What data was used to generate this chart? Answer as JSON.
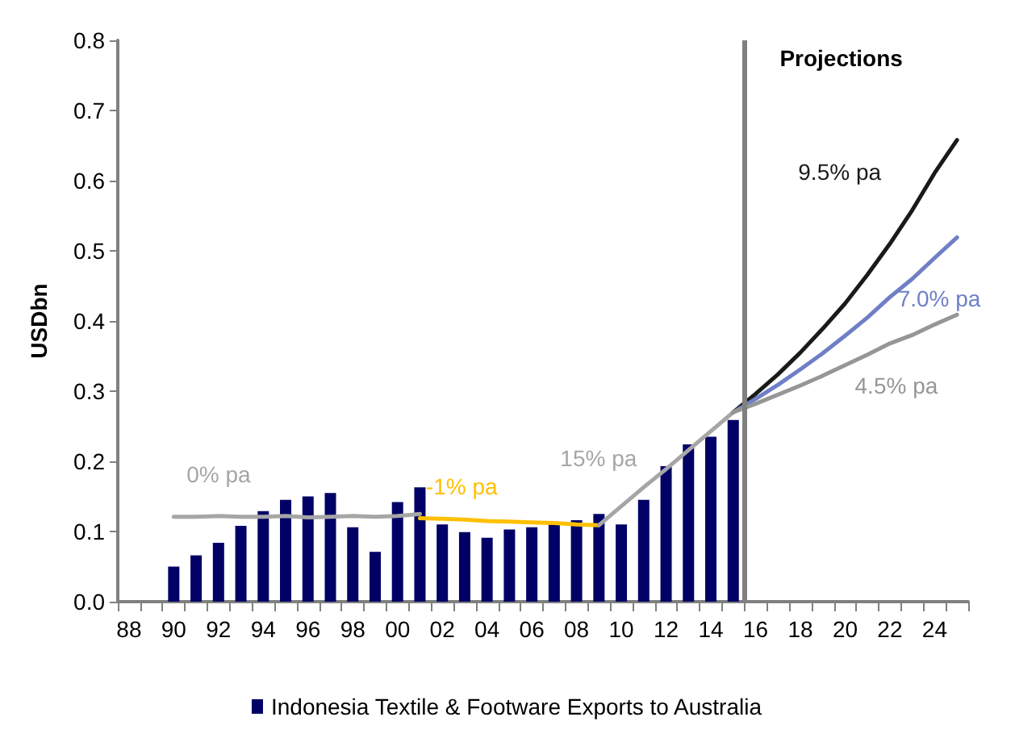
{
  "chart_data": {
    "type": "bar",
    "ylabel": "USDbn",
    "xlim": [
      1987.5,
      2025.5
    ],
    "xticks": [
      {
        "value": 1988,
        "label": "88"
      },
      {
        "value": 1990,
        "label": "90"
      },
      {
        "value": 1992,
        "label": "92"
      },
      {
        "value": 1994,
        "label": "94"
      },
      {
        "value": 1996,
        "label": "96"
      },
      {
        "value": 1998,
        "label": "98"
      },
      {
        "value": 2000,
        "label": "00"
      },
      {
        "value": 2002,
        "label": "02"
      },
      {
        "value": 2004,
        "label": "04"
      },
      {
        "value": 2006,
        "label": "06"
      },
      {
        "value": 2008,
        "label": "08"
      },
      {
        "value": 2010,
        "label": "10"
      },
      {
        "value": 2012,
        "label": "12"
      },
      {
        "value": 2014,
        "label": "14"
      },
      {
        "value": 2016,
        "label": "16"
      },
      {
        "value": 2018,
        "label": "18"
      },
      {
        "value": 2020,
        "label": "20"
      },
      {
        "value": 2022,
        "label": "22"
      },
      {
        "value": 2024,
        "label": "24"
      }
    ],
    "ylim": [
      0,
      0.8
    ],
    "yticks": [
      {
        "value": 0,
        "label": "0.0"
      },
      0.1,
      0.2,
      0.3,
      0.4,
      0.5,
      0.6,
      0.7,
      0.8
    ],
    "grid": false,
    "legend": "bottom",
    "marker": "none",
    "x": [
      1990,
      1991,
      1992,
      1993,
      1994,
      1995,
      1996,
      1997,
      1998,
      1999,
      2000,
      2001,
      2002,
      2003,
      2004,
      2005,
      2006,
      2007,
      2008,
      2009,
      2010,
      2011,
      2012,
      2013,
      2014,
      2015
    ],
    "series": [
      {
        "name": "Indonesia Textile & Footware Exports to Australia",
        "color": "#000066",
        "values": [
          0.05,
          0.066,
          0.084,
          0.108,
          0.129,
          0.145,
          0.15,
          0.155,
          0.106,
          0.071,
          0.142,
          0.163,
          0.11,
          0.099,
          0.091,
          0.103,
          0.106,
          0.111,
          0.116,
          0.125,
          0.11,
          0.145,
          0.193,
          0.224,
          0.235,
          0.259
        ]
      },
      {
        "type": "line",
        "name": "0% pa",
        "color": "#a6a6a6",
        "x": [
          1990,
          1991,
          1992,
          1993,
          1994,
          1995,
          1996,
          1997,
          1998,
          1999,
          2000,
          2001
        ],
        "values": [
          0.121,
          0.121,
          0.122,
          0.121,
          0.121,
          0.122,
          0.12,
          0.121,
          0.122,
          0.121,
          0.122,
          0.125
        ]
      },
      {
        "type": "line",
        "name": "-1% pa",
        "color": "#ffc000",
        "x": [
          2001,
          2002,
          2003,
          2004,
          2005,
          2006,
          2007,
          2008,
          2009
        ],
        "values": [
          0.119,
          0.118,
          0.117,
          0.115,
          0.114,
          0.113,
          0.112,
          0.11,
          0.109
        ]
      },
      {
        "type": "line",
        "name": "15% pa",
        "color": "#a6a6a6",
        "x": [
          2009,
          2010,
          2011,
          2012,
          2013,
          2014,
          2015
        ],
        "values": [
          0.109,
          0.136,
          0.163,
          0.189,
          0.216,
          0.243,
          0.27
        ]
      },
      {
        "type": "line",
        "name": "9.5% pa",
        "color": "#1a1a1a",
        "x": [
          2015,
          2016,
          2017,
          2018,
          2019,
          2020,
          2021,
          2022,
          2023,
          2024,
          2025
        ],
        "values": [
          0.27,
          0.296,
          0.324,
          0.355,
          0.389,
          0.425,
          0.466,
          0.51,
          0.558,
          0.611,
          0.658
        ]
      },
      {
        "type": "line",
        "name": "7.0% pa",
        "color": "#6f7fc6",
        "x": [
          2015,
          2016,
          2017,
          2018,
          2019,
          2020,
          2021,
          2022,
          2023,
          2024,
          2025
        ],
        "values": [
          0.27,
          0.289,
          0.309,
          0.331,
          0.354,
          0.379,
          0.405,
          0.434,
          0.46,
          0.49,
          0.519
        ]
      },
      {
        "type": "line",
        "name": "4.5% pa",
        "color": "#969696",
        "x": [
          2015,
          2016,
          2017,
          2018,
          2019,
          2020,
          2021,
          2022,
          2023,
          2024,
          2025
        ],
        "values": [
          0.27,
          0.282,
          0.295,
          0.308,
          0.322,
          0.337,
          0.352,
          0.368,
          0.38,
          0.395,
          0.409
        ]
      }
    ],
    "ref_lines": [
      {
        "axis": "x",
        "value": 2015.5,
        "label": "Projections",
        "color": "#808080"
      }
    ]
  }
}
